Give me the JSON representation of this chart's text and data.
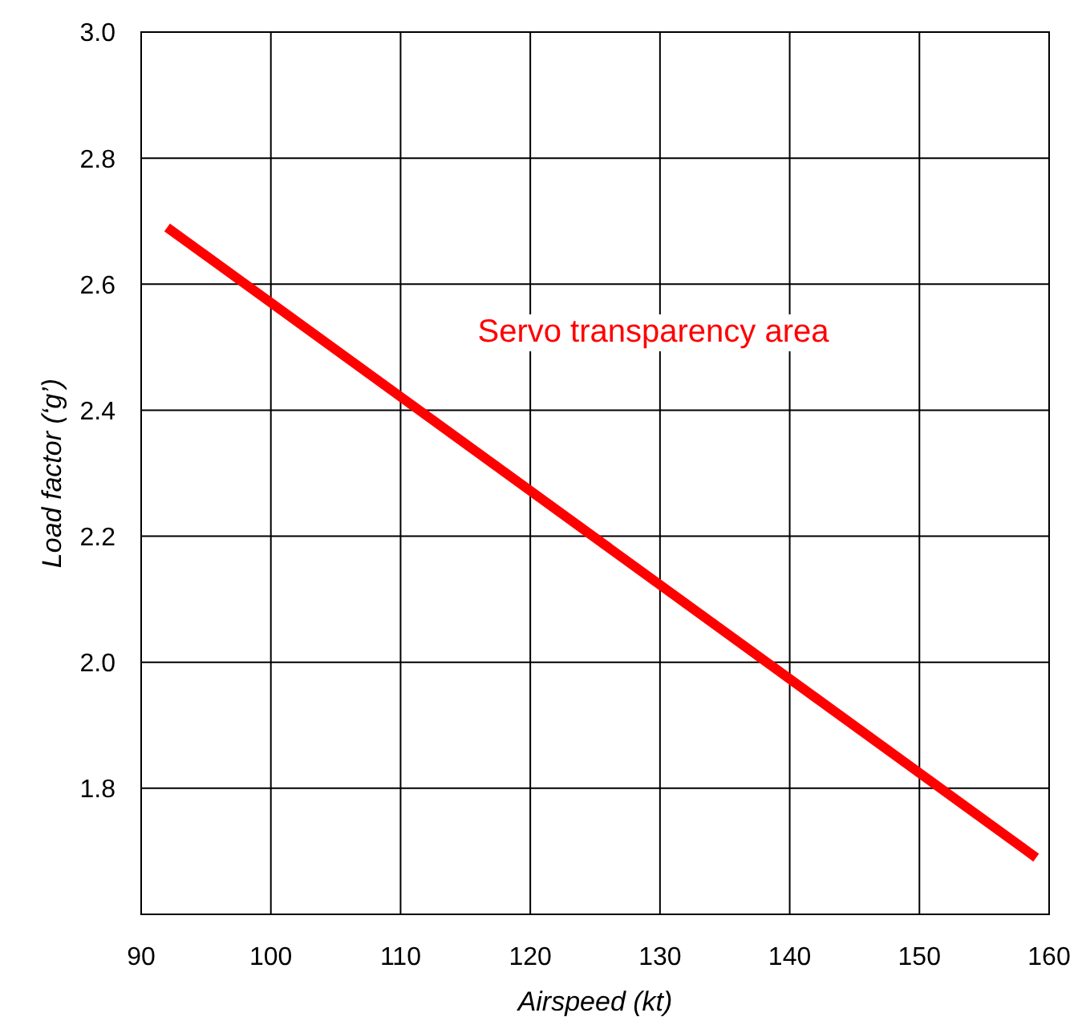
{
  "chart_data": {
    "type": "line",
    "xlabel": "Airspeed (kt)",
    "ylabel": "Load factor (‘g’)",
    "x": [
      92,
      159
    ],
    "series": [
      {
        "color": "#ff0000",
        "values": [
          2.69,
          1.69
        ]
      }
    ],
    "xlim": [
      90,
      160
    ],
    "xticks": [
      90,
      100,
      110,
      120,
      130,
      140,
      150,
      160
    ],
    "ylim": [
      1.6,
      3.0
    ],
    "yticks": [
      {
        "value": 1.6,
        "label": null
      },
      {
        "value": 1.8,
        "label": "1.8"
      },
      {
        "value": 2.0,
        "label": "2.0"
      },
      {
        "value": 2.2,
        "label": "2.2"
      },
      {
        "value": 2.4,
        "label": "2.4"
      },
      {
        "value": 2.6,
        "label": "2.6"
      },
      {
        "value": 2.8,
        "label": "2.8"
      },
      {
        "value": 3.0,
        "label": "3.0"
      }
    ],
    "grid": true,
    "marker": "none",
    "line_style": "solid",
    "annotations": [
      "Servo transparency area"
    ]
  }
}
